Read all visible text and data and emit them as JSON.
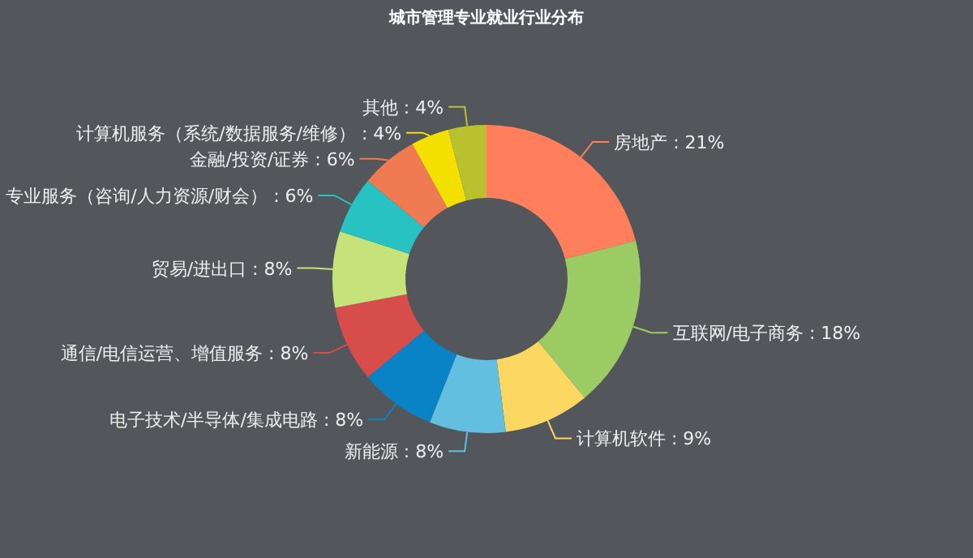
{
  "chart_data": {
    "type": "donut",
    "title": "城市管理专业就业行业分布",
    "categories": [
      "房地产",
      "互联网/电子商务",
      "计算机软件",
      "新能源",
      "电子技术/半导体/集成电路",
      "通信/电信运营、增值服务",
      "贸易/进出口",
      "专业服务（咨询/人力资源/财会）",
      "金融/投资/证券",
      "计算机服务（系统/数据服务/维修）",
      "其他"
    ],
    "values": [
      21,
      18,
      9,
      8,
      8,
      8,
      8,
      6,
      6,
      4,
      4
    ],
    "value_labels": [
      "21%",
      "18%",
      "9%",
      "8%",
      "8%",
      "8%",
      "8%",
      "6%",
      "6%",
      "4%",
      "4%"
    ],
    "colors": [
      "#ff7f5c",
      "#9bcb62",
      "#fcd862",
      "#62bfdf",
      "#0a83c6",
      "#d64d4a",
      "#c6e27a",
      "#27c2c1",
      "#f07b53",
      "#f5e100",
      "#b9c22e"
    ]
  }
}
